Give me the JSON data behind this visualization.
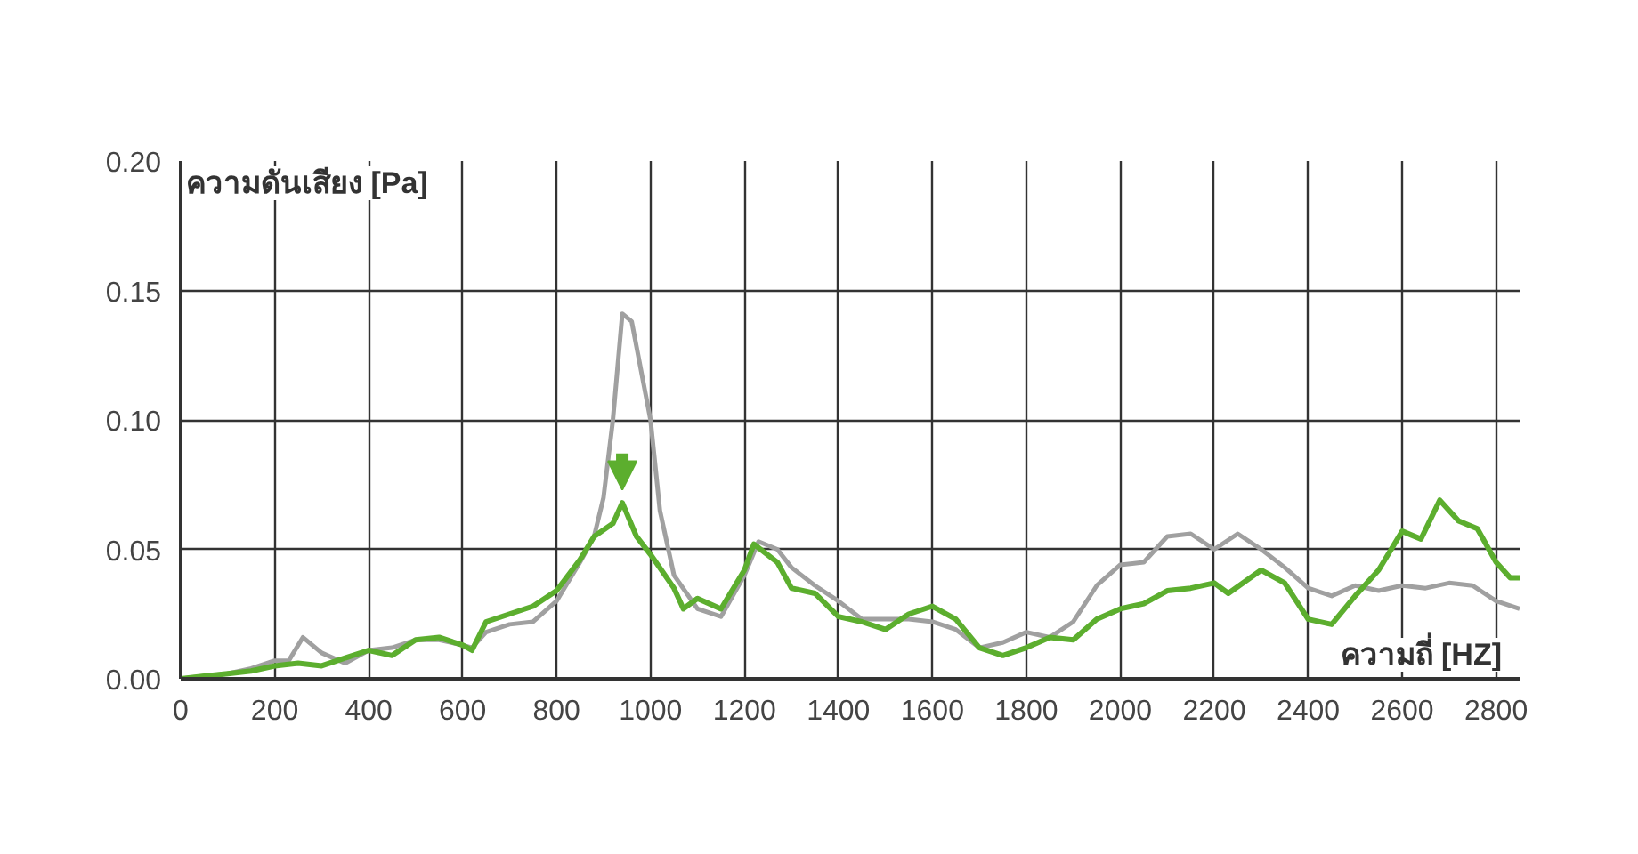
{
  "chart_data": {
    "type": "line",
    "xlabel": "ความถี่ [HZ]",
    "ylabel": "ความดันเสียง [Pa]",
    "xlim": [
      0,
      2850
    ],
    "xticks": [
      0,
      200,
      400,
      600,
      800,
      1000,
      1200,
      1400,
      1600,
      1800,
      2000,
      2200,
      2400,
      2600,
      2800
    ],
    "ylim": [
      0,
      0.2
    ],
    "yticks": [
      {
        "value": 0,
        "label": "0.00"
      },
      {
        "value": 0.05,
        "label": "0.05"
      },
      {
        "value": 0.1,
        "label": "0.10"
      },
      {
        "value": 0.15,
        "label": "0.15"
      },
      {
        "value": 0.2,
        "label": "0.20"
      }
    ],
    "grid": true,
    "marker": "none",
    "line_style": "solid",
    "series": [
      {
        "color": "#a0a0a0",
        "x": [
          0,
          50,
          100,
          150,
          200,
          230,
          260,
          300,
          350,
          400,
          450,
          500,
          550,
          600,
          620,
          650,
          700,
          750,
          800,
          850,
          880,
          900,
          920,
          940,
          960,
          1000,
          1020,
          1050,
          1100,
          1150,
          1200,
          1230,
          1270,
          1300,
          1350,
          1400,
          1450,
          1500,
          1550,
          1600,
          1650,
          1700,
          1750,
          1800,
          1850,
          1900,
          1950,
          2000,
          2050,
          2100,
          2150,
          2200,
          2250,
          2300,
          2350,
          2400,
          2450,
          2500,
          2550,
          2600,
          2650,
          2700,
          2750,
          2800,
          2850
        ],
        "values": [
          0,
          0.001,
          0.002,
          0.004,
          0.007,
          0.007,
          0.016,
          0.01,
          0.006,
          0.011,
          0.012,
          0.015,
          0.015,
          0.013,
          0.012,
          0.018,
          0.021,
          0.022,
          0.03,
          0.045,
          0.055,
          0.07,
          0.1,
          0.141,
          0.138,
          0.1,
          0.065,
          0.04,
          0.027,
          0.024,
          0.04,
          0.053,
          0.05,
          0.043,
          0.036,
          0.03,
          0.023,
          0.023,
          0.023,
          0.022,
          0.019,
          0.012,
          0.014,
          0.018,
          0.016,
          0.022,
          0.036,
          0.044,
          0.045,
          0.055,
          0.056,
          0.05,
          0.056,
          0.05,
          0.043,
          0.035,
          0.032,
          0.036,
          0.034,
          0.036,
          0.035,
          0.037,
          0.036,
          0.03,
          0.027
        ]
      },
      {
        "color": "#5cae2e",
        "x": [
          0,
          50,
          100,
          150,
          200,
          250,
          300,
          350,
          400,
          450,
          500,
          550,
          600,
          620,
          650,
          700,
          750,
          800,
          850,
          880,
          920,
          940,
          970,
          1000,
          1050,
          1070,
          1100,
          1150,
          1200,
          1220,
          1270,
          1300,
          1350,
          1400,
          1450,
          1500,
          1550,
          1600,
          1650,
          1700,
          1750,
          1800,
          1850,
          1900,
          1950,
          2000,
          2050,
          2100,
          2150,
          2200,
          2230,
          2300,
          2350,
          2400,
          2450,
          2500,
          2550,
          2600,
          2640,
          2680,
          2720,
          2760,
          2800,
          2830,
          2850
        ],
        "values": [
          0,
          0.001,
          0.002,
          0.003,
          0.005,
          0.006,
          0.005,
          0.008,
          0.011,
          0.009,
          0.015,
          0.016,
          0.013,
          0.011,
          0.022,
          0.025,
          0.028,
          0.034,
          0.046,
          0.055,
          0.06,
          0.068,
          0.055,
          0.048,
          0.035,
          0.027,
          0.031,
          0.027,
          0.042,
          0.052,
          0.045,
          0.035,
          0.033,
          0.024,
          0.022,
          0.019,
          0.025,
          0.028,
          0.023,
          0.012,
          0.009,
          0.012,
          0.016,
          0.015,
          0.023,
          0.027,
          0.029,
          0.034,
          0.035,
          0.037,
          0.033,
          0.042,
          0.037,
          0.023,
          0.021,
          0.032,
          0.042,
          0.057,
          0.054,
          0.069,
          0.061,
          0.058,
          0.045,
          0.039,
          0.039
        ]
      }
    ]
  }
}
